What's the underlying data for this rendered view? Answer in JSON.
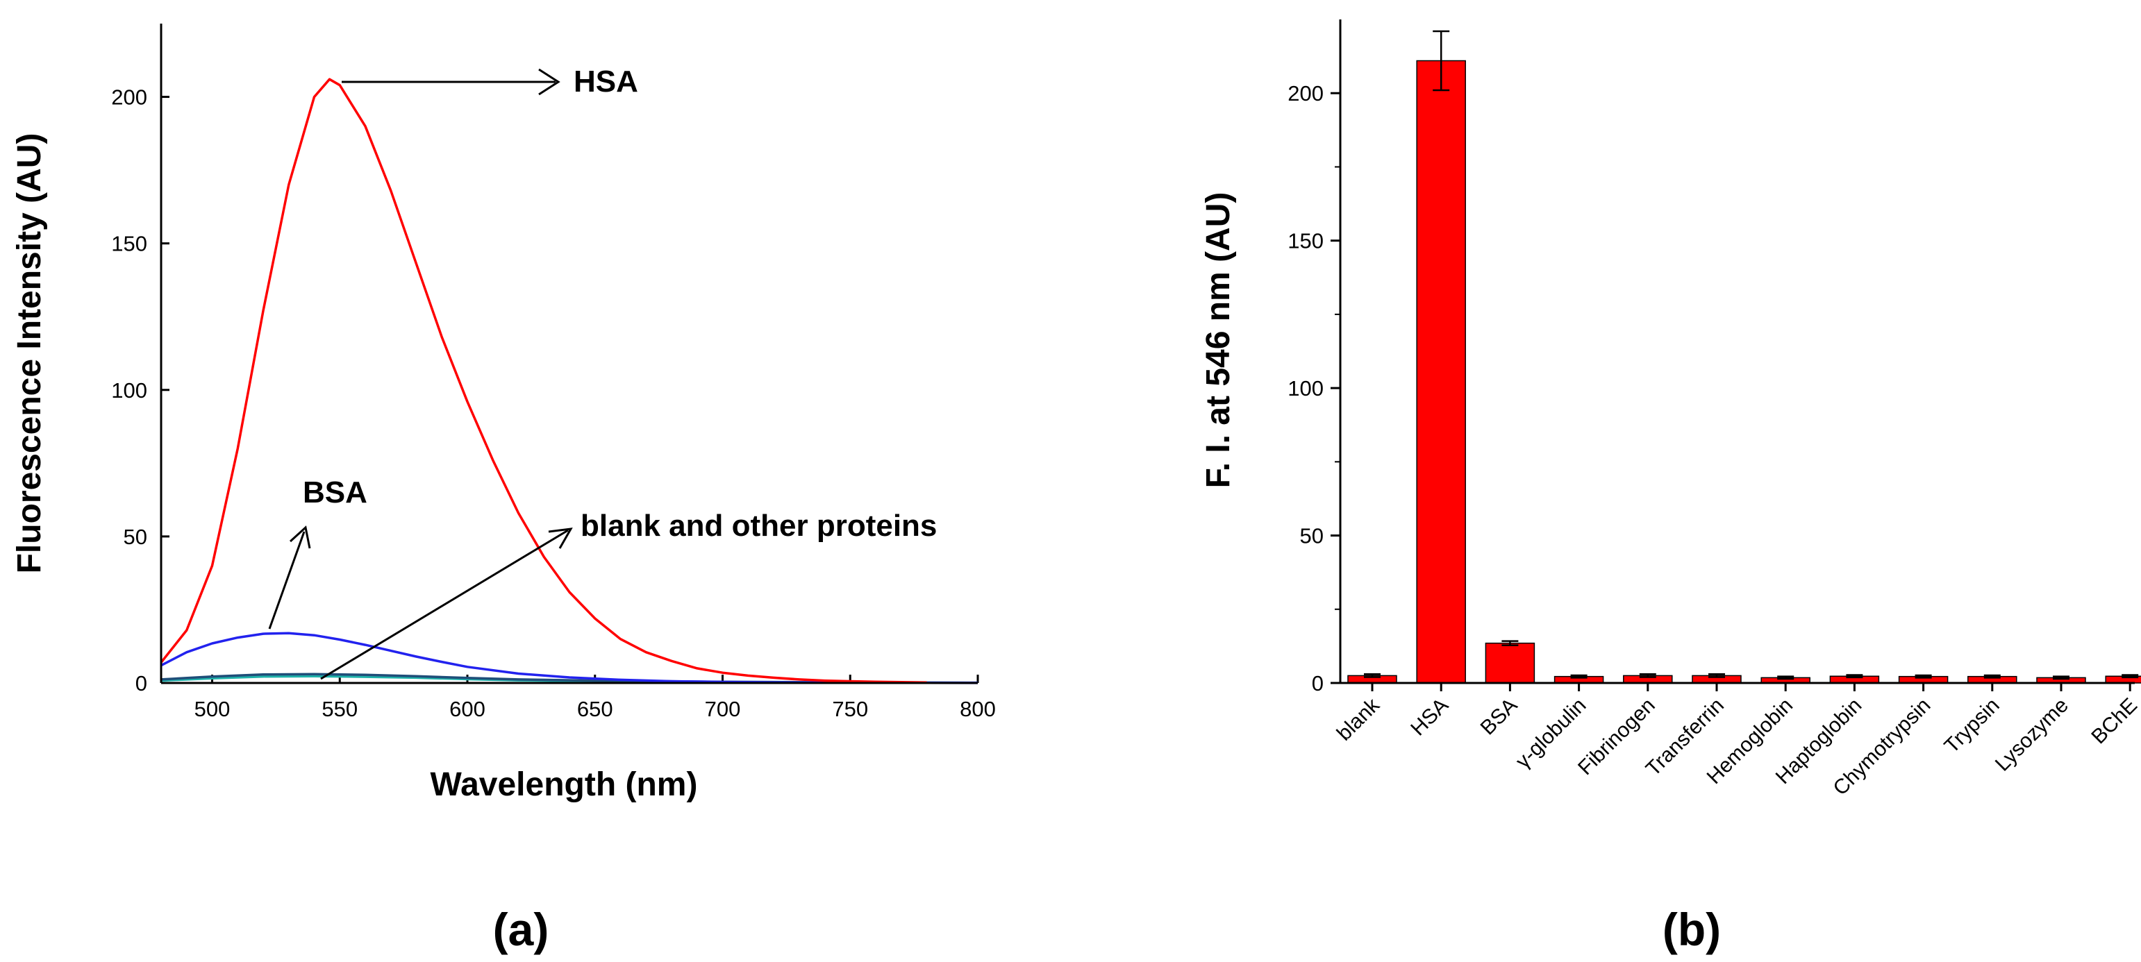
{
  "chart_data": [
    {
      "type": "line",
      "panel_label": "(a)",
      "xlabel": "Wavelength (nm)",
      "ylabel": "Fluorescence Intensity (AU)",
      "xlim": [
        480,
        800
      ],
      "ylim": [
        0,
        225
      ],
      "xticks": [
        500,
        550,
        600,
        650,
        700,
        750,
        800
      ],
      "yticks": [
        0,
        50,
        100,
        150,
        200
      ],
      "series": [
        {
          "name": "HSA",
          "color": "#ff0000",
          "x": [
            480,
            490,
            500,
            510,
            520,
            530,
            540,
            546,
            550,
            560,
            570,
            580,
            590,
            600,
            610,
            620,
            630,
            640,
            650,
            660,
            670,
            680,
            690,
            700,
            710,
            720,
            730,
            740,
            750,
            760,
            770,
            780
          ],
          "y": [
            7,
            18,
            40,
            80,
            127,
            170,
            200,
            206,
            204,
            190,
            168,
            143,
            118,
            96,
            76,
            58,
            43,
            31,
            22,
            15,
            10.5,
            7.5,
            5,
            3.5,
            2.5,
            1.8,
            1.2,
            0.8,
            0.6,
            0.4,
            0.3,
            0.2
          ]
        },
        {
          "name": "BSA",
          "color": "#2222ee",
          "x": [
            480,
            490,
            500,
            510,
            520,
            530,
            540,
            550,
            560,
            570,
            580,
            590,
            600,
            620,
            640,
            660,
            680,
            700,
            720,
            740,
            760,
            780,
            800
          ],
          "y": [
            6,
            10.5,
            13.5,
            15.5,
            16.8,
            17,
            16.3,
            14.8,
            13,
            11,
            9,
            7.2,
            5.5,
            3.2,
            1.9,
            1.1,
            0.6,
            0.35,
            0.2,
            0.12,
            0.08,
            0.05,
            0.03
          ]
        },
        {
          "name": "blank and other proteins",
          "color": "#1f4e79",
          "x": [
            480,
            500,
            520,
            540,
            560,
            580,
            600,
            620,
            650,
            700,
            750,
            800
          ],
          "y": [
            1.2,
            2.2,
            2.9,
            3.0,
            2.8,
            2.3,
            1.7,
            1.2,
            0.8,
            0.4,
            0.2,
            0.1
          ]
        },
        {
          "name": "blank and other proteins (teal)",
          "color": "#20b2aa",
          "x": [
            480,
            500,
            520,
            540,
            560,
            580,
            600,
            620,
            650,
            700,
            750,
            800
          ],
          "y": [
            0.8,
            1.6,
            2.2,
            2.3,
            2.1,
            1.8,
            1.3,
            0.9,
            0.6,
            0.3,
            0.15,
            0.05
          ]
        }
      ],
      "annotations": [
        "HSA",
        "BSA",
        "blank and other proteins"
      ]
    },
    {
      "type": "bar",
      "panel_label": "(b)",
      "ylabel": "F. I. at 546 nm (AU)",
      "ylim": [
        0,
        225
      ],
      "yticks": [
        0,
        50,
        100,
        150,
        200
      ],
      "bar_color": "#ff0000",
      "categories": [
        "blank",
        "HSA",
        "BSA",
        "γ-globulin",
        "Fibrinogen",
        "Transferrin",
        "Hemoglobin",
        "Haptoglobin",
        "Chymotrypsin",
        "Trypsin",
        "Lysozyme",
        "BChE"
      ],
      "values": [
        2.5,
        211,
        13.5,
        2.2,
        2.5,
        2.5,
        1.8,
        2.3,
        2.2,
        2.2,
        1.8,
        2.3
      ],
      "errors": [
        0.5,
        10,
        0.7,
        0.4,
        0.5,
        0.5,
        0.4,
        0.4,
        0.4,
        0.4,
        0.4,
        0.4
      ]
    }
  ]
}
